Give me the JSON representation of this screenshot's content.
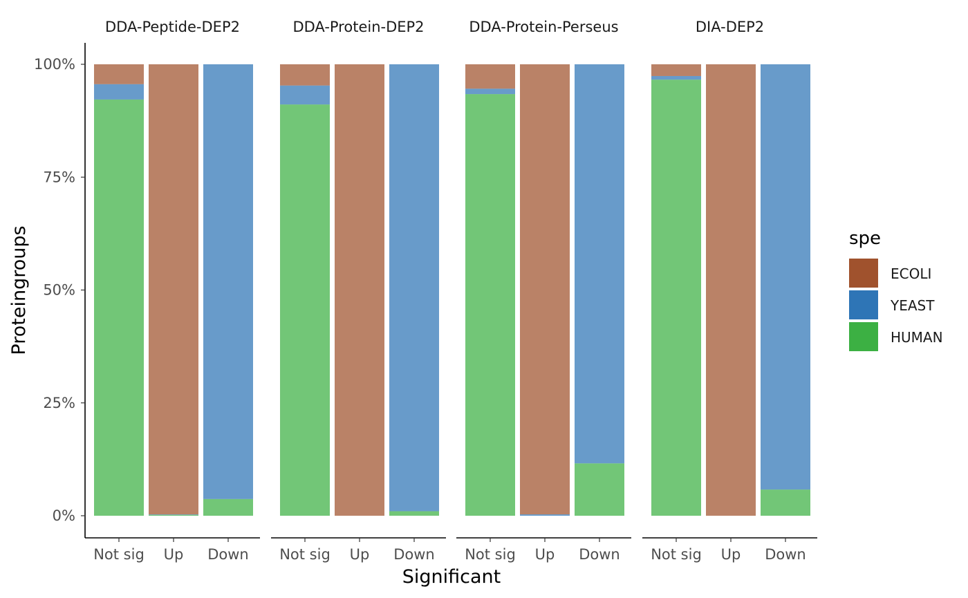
{
  "chart_data": {
    "type": "bar",
    "stacked": true,
    "percent": true,
    "xlabel": "Significant",
    "ylabel": "Proteingroups",
    "ylim": [
      0,
      1
    ],
    "yticks": [
      0,
      0.25,
      0.5,
      0.75,
      1.0
    ],
    "ytick_labels": [
      "0%",
      "25%",
      "50%",
      "75%",
      "100%"
    ],
    "categories": [
      "Not sig",
      "Up",
      "Down"
    ],
    "legend": {
      "title": "spe",
      "position": "right",
      "items": [
        {
          "name": "ECOLI",
          "color": "#A0522D"
        },
        {
          "name": "YEAST",
          "color": "#2E75B6"
        },
        {
          "name": "HUMAN",
          "color": "#3CB043"
        }
      ]
    },
    "stack_order_bottom_to_top": [
      "HUMAN",
      "YEAST",
      "ECOLI"
    ],
    "panels": [
      {
        "title": "DDA-Peptide-DEP2",
        "bars": [
          {
            "HUMAN": 0.922,
            "YEAST": 0.034,
            "ECOLI": 0.044
          },
          {
            "HUMAN": 0.002,
            "YEAST": 0.001,
            "ECOLI": 0.997
          },
          {
            "HUMAN": 0.037,
            "YEAST": 0.963,
            "ECOLI": 0.0
          }
        ]
      },
      {
        "title": "DDA-Protein-DEP2",
        "bars": [
          {
            "HUMAN": 0.911,
            "YEAST": 0.042,
            "ECOLI": 0.047
          },
          {
            "HUMAN": 0.0,
            "YEAST": 0.0,
            "ECOLI": 1.0
          },
          {
            "HUMAN": 0.01,
            "YEAST": 0.99,
            "ECOLI": 0.0
          }
        ]
      },
      {
        "title": "DDA-Protein-Perseus",
        "bars": [
          {
            "HUMAN": 0.934,
            "YEAST": 0.012,
            "ECOLI": 0.054
          },
          {
            "HUMAN": 0.0,
            "YEAST": 0.003,
            "ECOLI": 0.997
          },
          {
            "HUMAN": 0.116,
            "YEAST": 0.884,
            "ECOLI": 0.0
          }
        ]
      },
      {
        "title": "DIA-DEP2",
        "bars": [
          {
            "HUMAN": 0.966,
            "YEAST": 0.008,
            "ECOLI": 0.026
          },
          {
            "HUMAN": 0.0,
            "YEAST": 0.0,
            "ECOLI": 1.0
          },
          {
            "HUMAN": 0.058,
            "YEAST": 0.942,
            "ECOLI": 0.0
          }
        ]
      }
    ],
    "grid": false
  }
}
